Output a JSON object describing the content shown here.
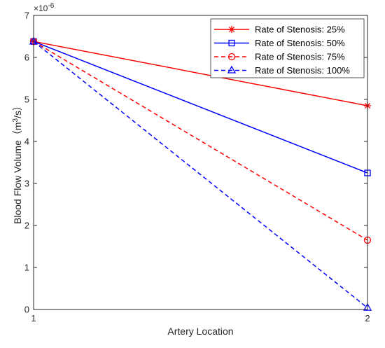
{
  "chart_data": {
    "type": "line",
    "title": "",
    "xlabel": "Artery Location",
    "ylabel_main": "Blood Flow Volume",
    "ylabel_unit_open": "（m",
    "ylabel_unit_sup": "3",
    "ylabel_unit_close": "/s）",
    "y_exponent_base": "×10",
    "y_exponent_power": "-6",
    "x": [
      1,
      2
    ],
    "xlim": [
      1,
      2
    ],
    "ylim": [
      0,
      7
    ],
    "x_ticks": [
      "1",
      "2"
    ],
    "y_ticks": [
      "0",
      "1",
      "2",
      "3",
      "4",
      "5",
      "6",
      "7"
    ],
    "grid": false,
    "legend_position": "top-right",
    "series": [
      {
        "name": "Rate of Stenosis: 25%",
        "values": [
          6.38,
          4.85
        ],
        "color": "#ff0000",
        "dash": "solid",
        "marker": "asterisk"
      },
      {
        "name": "Rate of Stenosis: 50%",
        "values": [
          6.38,
          3.25
        ],
        "color": "#0000ff",
        "dash": "solid",
        "marker": "square"
      },
      {
        "name": "Rate of Stenosis: 75%",
        "values": [
          6.38,
          1.65
        ],
        "color": "#ff0000",
        "dash": "dashed",
        "marker": "circle"
      },
      {
        "name": "Rate of Stenosis: 100%",
        "values": [
          6.38,
          0.04
        ],
        "color": "#0000ff",
        "dash": "dashed",
        "marker": "triangle"
      }
    ]
  }
}
